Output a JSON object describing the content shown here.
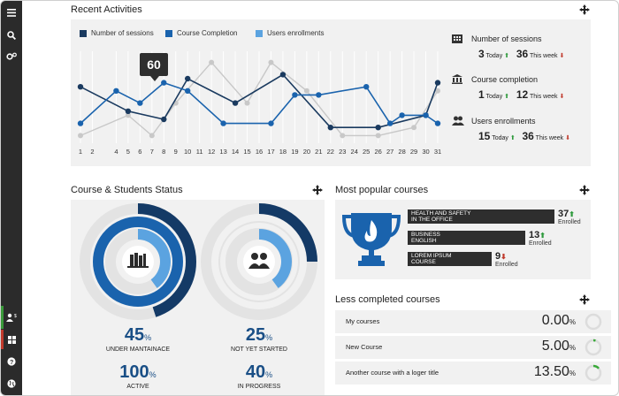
{
  "sidebar": {
    "icons": [
      "menu-icon",
      "search-icon",
      "settings-icon",
      "user-badge-icon",
      "grid-icon",
      "help-icon",
      "globe-icon"
    ]
  },
  "recent": {
    "title": "Recent Activities",
    "legend": [
      "Number of sessions",
      "Course Completion",
      "Users enrollments"
    ],
    "tooltip_value": "60",
    "stats": [
      {
        "title": "Number of sessions",
        "today": "3",
        "today_label": "Today",
        "week": "36",
        "week_label": "This week"
      },
      {
        "title": "Course completion",
        "today": "1",
        "today_label": "Today",
        "week": "12",
        "week_label": "This week"
      },
      {
        "title": "Users enrollments",
        "today": "15",
        "today_label": "Today",
        "week": "36",
        "week_label": "This week"
      }
    ]
  },
  "chart_data": {
    "type": "line",
    "x": [
      "1",
      "2",
      "4",
      "5",
      "6",
      "7",
      "8",
      "9",
      "10",
      "11",
      "12",
      "13",
      "14",
      "15",
      "16",
      "17",
      "18",
      "19",
      "20",
      "21",
      "22",
      "23",
      "24",
      "25",
      "26",
      "27",
      "28",
      "29",
      "30",
      "31"
    ],
    "ylim": [
      0,
      100
    ],
    "series": [
      {
        "name": "Number of sessions",
        "color": "#1a3a5f",
        "points": [
          [
            1,
            65
          ],
          [
            5,
            35
          ],
          [
            8,
            25
          ],
          [
            10,
            75
          ],
          [
            14,
            45
          ],
          [
            18,
            80
          ],
          [
            22,
            15
          ],
          [
            26,
            15
          ],
          [
            30,
            30
          ],
          [
            31,
            70
          ]
        ]
      },
      {
        "name": "Course Completion",
        "color": "#1a63ad",
        "points": [
          [
            1,
            20
          ],
          [
            4,
            60
          ],
          [
            6,
            45
          ],
          [
            8,
            70
          ],
          [
            10,
            60
          ],
          [
            13,
            20
          ],
          [
            17,
            20
          ],
          [
            19,
            55
          ],
          [
            21,
            55
          ],
          [
            25,
            65
          ],
          [
            27,
            20
          ],
          [
            28,
            30
          ],
          [
            30,
            30
          ],
          [
            31,
            20
          ]
        ]
      },
      {
        "name": "Users enrollments",
        "color": "#c8c8c8",
        "points": [
          [
            1,
            5
          ],
          [
            5,
            30
          ],
          [
            7,
            5
          ],
          [
            9,
            45
          ],
          [
            12,
            95
          ],
          [
            15,
            45
          ],
          [
            17,
            95
          ],
          [
            20,
            60
          ],
          [
            23,
            5
          ],
          [
            26,
            5
          ],
          [
            29,
            15
          ],
          [
            31,
            60
          ]
        ]
      }
    ]
  },
  "status": {
    "title": "Course & Students Status",
    "items": [
      {
        "value": "45",
        "unit": "%",
        "label": "UNDER MANTAINACE"
      },
      {
        "value": "25",
        "unit": "%",
        "label": "NOT YET STARTED"
      },
      {
        "value": "100",
        "unit": "%",
        "label": "ACTIVE"
      },
      {
        "value": "40",
        "unit": "%",
        "label": "IN PROGRESS"
      }
    ],
    "colors": {
      "dark": "#143a66",
      "mid": "#1a63ad",
      "light": "#5ba3e0",
      "track": "#e3e3e3"
    }
  },
  "popular": {
    "title": "Most popular courses",
    "courses": [
      {
        "name": "HEALTH AND SAFETY IN THE OFFICE",
        "line1": "HEALTH AND SAFETY",
        "line2": "IN THE OFFICE",
        "count": "37",
        "trend": "up",
        "sub": "Enrolled",
        "fill": 1.0
      },
      {
        "name": "BUSINESS ENGLISH",
        "line1": "BUSINESS",
        "line2": "ENGLISH",
        "count": "13",
        "trend": "up",
        "sub": "Enrolled",
        "fill": 0.8
      },
      {
        "name": "LOREM IPSUM COURSE",
        "line1": "LOREM IPSUM",
        "line2": "COURSE",
        "count": "9",
        "trend": "down",
        "sub": "Enrolled",
        "fill": 0.57
      }
    ]
  },
  "less": {
    "title": "Less completed courses",
    "rows": [
      {
        "name": "My courses",
        "int": "0",
        "dec": ".00",
        "unit": "%",
        "fraction": 0.0
      },
      {
        "name": "New Course",
        "int": "5",
        "dec": ".00",
        "unit": "%",
        "fraction": 0.05
      },
      {
        "name": "Another course with a loger title",
        "int": "13",
        "dec": ".50",
        "unit": "%",
        "fraction": 0.135
      }
    ]
  }
}
